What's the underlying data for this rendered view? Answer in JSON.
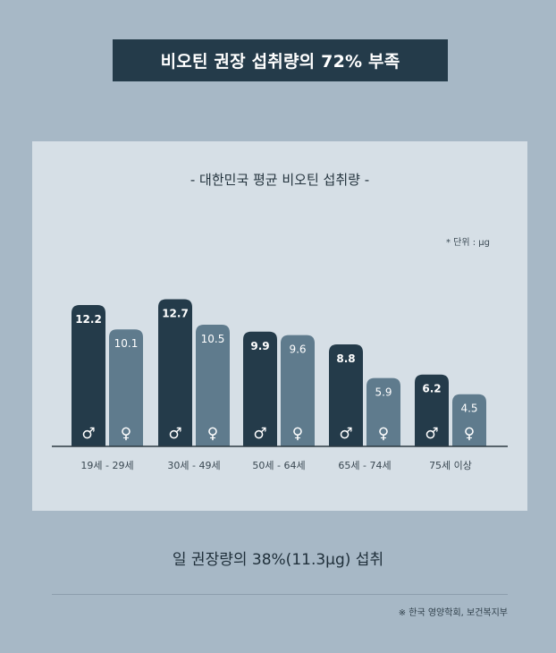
{
  "headline": "비오틴 권장 섭취량의 72% 부족",
  "chart_data": {
    "type": "bar",
    "title": "- 대한민국 평균 비오틴 섭취량 -",
    "unit_note": "* 단위 : μg",
    "categories": [
      "19세 - 29세",
      "30세 - 49세",
      "50세 - 64세",
      "65세 - 74세",
      "75세 이상"
    ],
    "series": [
      {
        "name": "♂",
        "color": "#243b4a",
        "values": [
          12.2,
          12.7,
          9.9,
          8.8,
          6.2
        ]
      },
      {
        "name": "♀",
        "color": "#5f7b8d",
        "values": [
          10.1,
          10.5,
          9.6,
          5.9,
          4.5
        ]
      }
    ],
    "ylim": [
      0,
      13.5
    ],
    "grid": false,
    "legend": "none"
  },
  "caption": "일 권장량의 38%(11.3μg) 섭취",
  "source": "※ 한국 영양학회, 보건복지부"
}
